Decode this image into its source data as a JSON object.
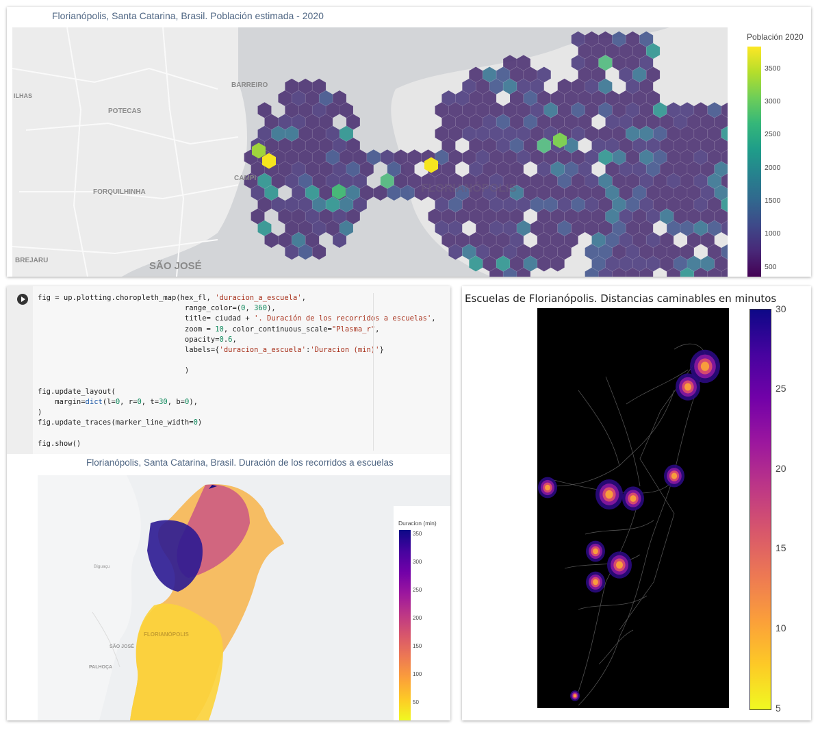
{
  "top_map": {
    "title": "Florianópolis, Santa Catarina, Brasil. Población estimada - 2020",
    "colorbar_title": "Población 2020",
    "colorbar_ticks": [
      "3500",
      "3000",
      "2500",
      "2000",
      "1500",
      "1000",
      "500"
    ],
    "places": [
      "BARREIRO",
      "POTECAS",
      "FORQUILHINHA",
      "CAMPI",
      "BREJARU",
      "SÃO JOSÉ",
      "FLORIANÓPOLIS",
      "ILHAS"
    ],
    "colorscale": [
      "#440154",
      "#3b528b",
      "#21918c",
      "#5ec962",
      "#fde725"
    ]
  },
  "code_cell": {
    "lines": [
      "fig = up.plotting.choropleth_map(hex_fl, 'duracion_a_escuela',",
      "                                  range_color=(0, 360),",
      "                                  title= ciudad + '. Duración de los recorridos a escuelas',",
      "                                  zoom = 10, color_continuous_scale=\"Plasma_r\",",
      "                                  opacity=0.6,",
      "                                  labels={'duracion_a_escuela':'Duracion (min)'}",
      "",
      "                                  )",
      "",
      "fig.update_layout(",
      "    margin=dict(l=0, r=0, t=30, b=0),",
      ")",
      "fig.update_traces(marker_line_width=0)",
      "",
      "fig.show()"
    ]
  },
  "bottom_map": {
    "title": "Florianópolis, Santa Catarina, Brasil. Duración de los recorridos a escuelas",
    "colorbar_title": "Duracion (min)",
    "colorbar_ticks": [
      "350",
      "300",
      "250",
      "200",
      "150",
      "100",
      "50"
    ],
    "places": [
      "Biguaçu",
      "SÃO JOSÉ",
      "PALHOÇA",
      "FLORIANÓPOLIS"
    ],
    "colorscale": [
      "#f0f921",
      "#fca636",
      "#e16462",
      "#b12a90",
      "#6a00a8",
      "#0d0887"
    ]
  },
  "right_plot": {
    "title": "Escuelas de Florianópolis. Distancias caminables en minutos",
    "colorbar_ticks": [
      "30",
      "25",
      "20",
      "15",
      "10",
      "5"
    ],
    "colorscale": [
      "#f0f921",
      "#fca636",
      "#e16462",
      "#b12a90",
      "#6a00a8",
      "#0d0887"
    ]
  }
}
